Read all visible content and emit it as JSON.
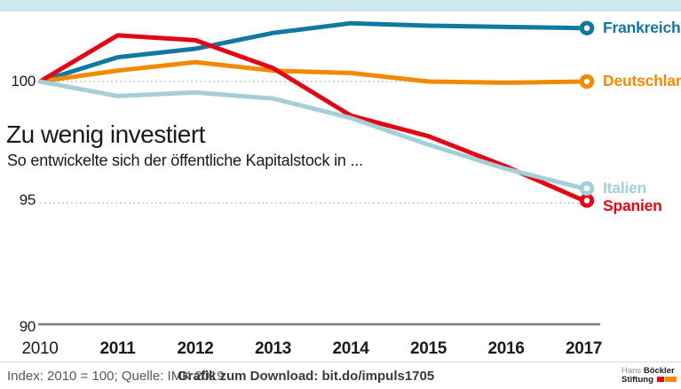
{
  "header": {
    "title": "Zu wenig investiert",
    "subtitle": "So entwickelte sich der öffentliche Kapitalstock in ..."
  },
  "chart_data": {
    "type": "line",
    "title": "Zu wenig investiert",
    "subtitle": "So entwickelte sich der öffentliche Kapitalstock in ...",
    "x": [
      2010,
      2011,
      2012,
      2013,
      2014,
      2015,
      2016,
      2017
    ],
    "x_labels": [
      "2010",
      "2011",
      "2012",
      "2013",
      "2014",
      "2015",
      "2016",
      "2017"
    ],
    "ytick_labels": [
      "100",
      "95",
      "90"
    ],
    "yticks": [
      100,
      95,
      90
    ],
    "ylim": [
      90,
      103
    ],
    "series": [
      {
        "name": "Frankreich",
        "color": "#1377a4",
        "values": [
          100,
          101.0,
          101.35,
          102.0,
          102.4,
          102.3,
          102.25,
          102.2
        ]
      },
      {
        "name": "Deutschland",
        "color": "#f18a00",
        "values": [
          100,
          100.45,
          100.8,
          100.45,
          100.35,
          100.0,
          99.95,
          100.0
        ]
      },
      {
        "name": "Italien",
        "color": "#a4cfd7",
        "values": [
          100,
          99.4,
          99.55,
          99.3,
          98.5,
          97.4,
          96.4,
          95.6
        ]
      },
      {
        "name": "Spanien",
        "color": "#e30613",
        "values": [
          100,
          101.9,
          101.7,
          100.55,
          98.6,
          97.75,
          96.5,
          95.1
        ]
      }
    ],
    "draw_order": [
      0,
      1,
      3,
      2
    ],
    "grid": {
      "dotted_at": [
        100,
        95
      ],
      "solid_baseline_at": 90
    },
    "legend_position": "line-end-right",
    "marker": "open-circle-at-line-end"
  },
  "footer": {
    "note": "Index: 2010 = 100; Quelle: IMK 2019",
    "download": "Grafik zum Download: bit.do/impuls1705"
  },
  "logo": {
    "name_regular": "Hans ",
    "name_bold": "Böckler",
    "line2_bold": "Stiftung"
  },
  "colors": {
    "top_band": "#cfe7f0",
    "gridline": "#c9c9c9",
    "axis_line": "#7d7d7d",
    "text": "#1a1a1a",
    "footer_text": "#575757",
    "footer_bold_text": "#3a3a3a",
    "logo_red": "#e30613",
    "logo_orange": "#f18a00"
  }
}
